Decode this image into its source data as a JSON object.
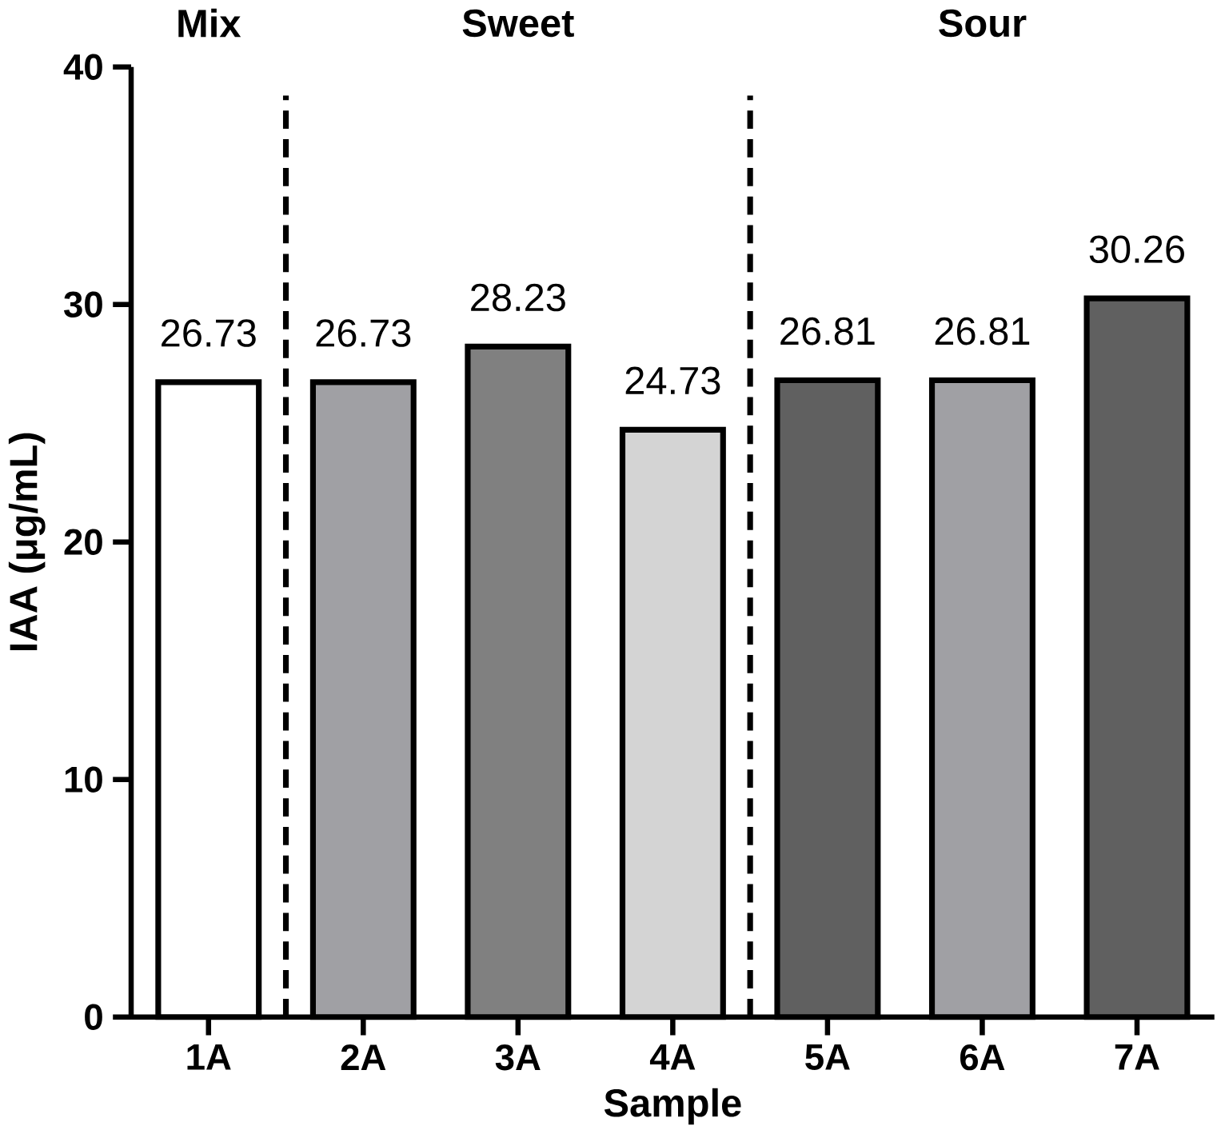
{
  "chart_data": {
    "type": "bar",
    "xlabel": "Sample",
    "ylabel": "IAA (μg/mL)",
    "categories": [
      "1A",
      "2A",
      "3A",
      "4A",
      "5A",
      "6A",
      "7A"
    ],
    "values": [
      26.73,
      26.73,
      28.23,
      24.73,
      26.81,
      26.81,
      30.26
    ],
    "colors": [
      "#ffffff",
      "#a0a0a4",
      "#808080",
      "#d4d4d4",
      "#606060",
      "#a0a0a4",
      "#606060"
    ],
    "ylim": [
      0,
      40
    ],
    "yticks": [
      0,
      10,
      20,
      30,
      40
    ],
    "data_labels": true,
    "grid": false,
    "annotations": [
      "Mix",
      "Sweet",
      "Sour"
    ]
  }
}
